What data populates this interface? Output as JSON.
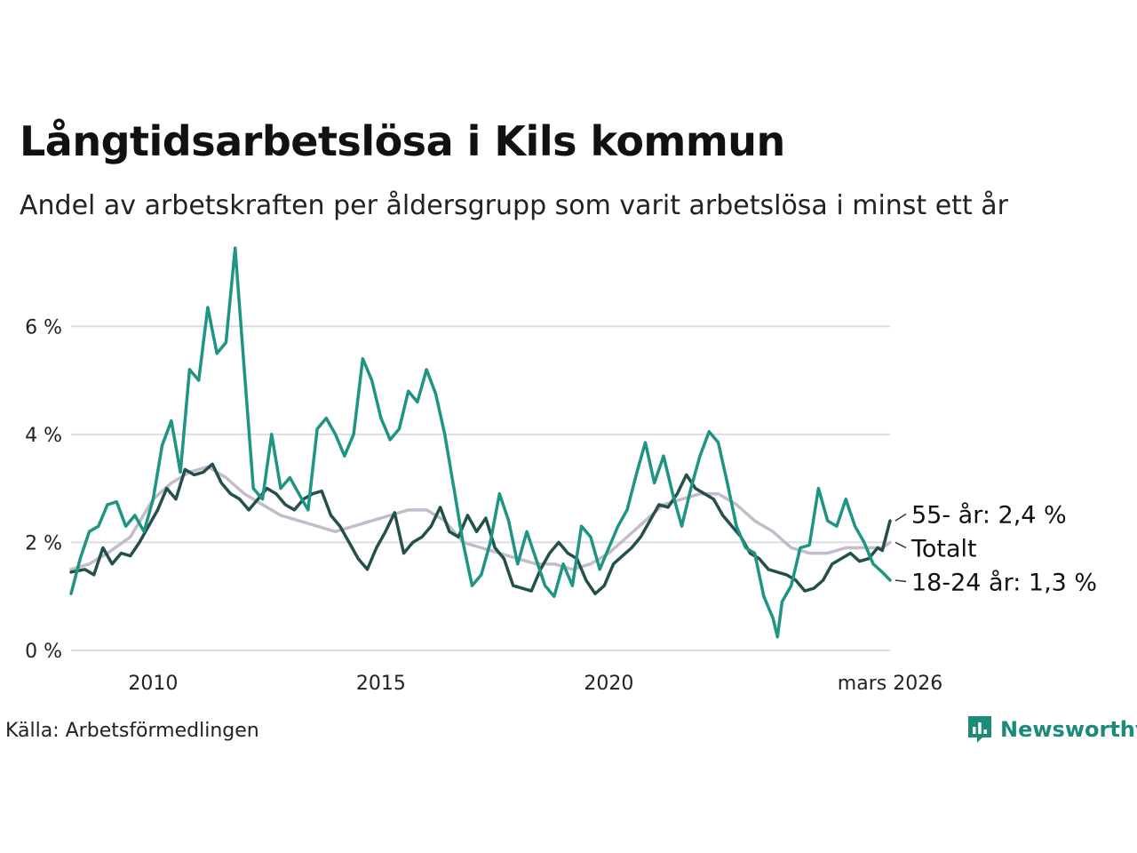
{
  "chart_data": {
    "type": "line",
    "title": "Långtidsarbetslösa i Kils kommun",
    "subtitle": "Andel av arbetskraften per åldersgrupp som varit arbetslösa i minst ett år",
    "xlabel": "",
    "ylabel": "",
    "x_range": [
      2008.2,
      2026.17
    ],
    "ylim": [
      0,
      7.6
    ],
    "y_ticks": [
      0,
      2,
      4,
      6
    ],
    "y_tick_labels": [
      "0 %",
      "2 %",
      "4 %",
      "6 %"
    ],
    "x_ticks": [
      2010,
      2015,
      2020,
      2026.17
    ],
    "x_tick_labels": [
      "2010",
      "2015",
      "2020",
      "mars 2026"
    ],
    "grid": true,
    "source": "Källa: Arbetsförmedlingen",
    "series": [
      {
        "name": "Totalt",
        "label": "Totalt",
        "color": "#c2bccb",
        "points": [
          [
            2008.2,
            1.5
          ],
          [
            2008.6,
            1.6
          ],
          [
            2009.0,
            1.8
          ],
          [
            2009.5,
            2.1
          ],
          [
            2010.0,
            2.8
          ],
          [
            2010.4,
            3.1
          ],
          [
            2010.8,
            3.3
          ],
          [
            2011.2,
            3.4
          ],
          [
            2011.6,
            3.2
          ],
          [
            2012.0,
            2.9
          ],
          [
            2012.4,
            2.7
          ],
          [
            2012.8,
            2.5
          ],
          [
            2013.2,
            2.4
          ],
          [
            2013.6,
            2.3
          ],
          [
            2014.0,
            2.2
          ],
          [
            2014.4,
            2.3
          ],
          [
            2014.8,
            2.4
          ],
          [
            2015.2,
            2.5
          ],
          [
            2015.6,
            2.6
          ],
          [
            2016.0,
            2.6
          ],
          [
            2016.4,
            2.4
          ],
          [
            2016.8,
            2.0
          ],
          [
            2017.2,
            1.9
          ],
          [
            2017.6,
            1.8
          ],
          [
            2018.0,
            1.7
          ],
          [
            2018.4,
            1.6
          ],
          [
            2018.8,
            1.6
          ],
          [
            2019.2,
            1.5
          ],
          [
            2019.6,
            1.6
          ],
          [
            2020.0,
            1.8
          ],
          [
            2020.4,
            2.1
          ],
          [
            2020.8,
            2.4
          ],
          [
            2021.2,
            2.7
          ],
          [
            2021.6,
            2.8
          ],
          [
            2022.0,
            2.9
          ],
          [
            2022.4,
            2.9
          ],
          [
            2022.8,
            2.7
          ],
          [
            2023.2,
            2.4
          ],
          [
            2023.6,
            2.2
          ],
          [
            2024.0,
            1.9
          ],
          [
            2024.4,
            1.8
          ],
          [
            2024.8,
            1.8
          ],
          [
            2025.2,
            1.9
          ],
          [
            2025.6,
            1.9
          ],
          [
            2026.0,
            1.9
          ],
          [
            2026.17,
            2.0
          ]
        ]
      },
      {
        "name": "55- år",
        "label": "55- år: 2,4 %",
        "color": "#23504a",
        "points": [
          [
            2008.2,
            1.45
          ],
          [
            2008.5,
            1.5
          ],
          [
            2008.7,
            1.4
          ],
          [
            2008.9,
            1.9
          ],
          [
            2009.1,
            1.6
          ],
          [
            2009.3,
            1.8
          ],
          [
            2009.5,
            1.75
          ],
          [
            2009.7,
            2.0
          ],
          [
            2009.9,
            2.3
          ],
          [
            2010.1,
            2.6
          ],
          [
            2010.3,
            3.0
          ],
          [
            2010.5,
            2.8
          ],
          [
            2010.7,
            3.35
          ],
          [
            2010.9,
            3.25
          ],
          [
            2011.1,
            3.3
          ],
          [
            2011.3,
            3.45
          ],
          [
            2011.5,
            3.1
          ],
          [
            2011.7,
            2.9
          ],
          [
            2011.9,
            2.8
          ],
          [
            2012.1,
            2.6
          ],
          [
            2012.3,
            2.8
          ],
          [
            2012.5,
            3.0
          ],
          [
            2012.7,
            2.9
          ],
          [
            2012.9,
            2.7
          ],
          [
            2013.1,
            2.6
          ],
          [
            2013.3,
            2.8
          ],
          [
            2013.5,
            2.9
          ],
          [
            2013.7,
            2.95
          ],
          [
            2013.9,
            2.5
          ],
          [
            2014.1,
            2.3
          ],
          [
            2014.3,
            2.0
          ],
          [
            2014.5,
            1.7
          ],
          [
            2014.7,
            1.5
          ],
          [
            2014.9,
            1.9
          ],
          [
            2015.1,
            2.2
          ],
          [
            2015.3,
            2.55
          ],
          [
            2015.5,
            1.8
          ],
          [
            2015.7,
            2.0
          ],
          [
            2015.9,
            2.1
          ],
          [
            2016.1,
            2.3
          ],
          [
            2016.3,
            2.65
          ],
          [
            2016.5,
            2.2
          ],
          [
            2016.7,
            2.1
          ],
          [
            2016.9,
            2.5
          ],
          [
            2017.1,
            2.2
          ],
          [
            2017.3,
            2.45
          ],
          [
            2017.5,
            1.9
          ],
          [
            2017.7,
            1.7
          ],
          [
            2017.9,
            1.2
          ],
          [
            2018.1,
            1.15
          ],
          [
            2018.3,
            1.1
          ],
          [
            2018.5,
            1.5
          ],
          [
            2018.7,
            1.8
          ],
          [
            2018.9,
            2.0
          ],
          [
            2019.1,
            1.8
          ],
          [
            2019.3,
            1.7
          ],
          [
            2019.5,
            1.3
          ],
          [
            2019.7,
            1.05
          ],
          [
            2019.9,
            1.2
          ],
          [
            2020.1,
            1.6
          ],
          [
            2020.3,
            1.75
          ],
          [
            2020.5,
            1.9
          ],
          [
            2020.7,
            2.1
          ],
          [
            2020.9,
            2.4
          ],
          [
            2021.1,
            2.7
          ],
          [
            2021.3,
            2.65
          ],
          [
            2021.5,
            2.9
          ],
          [
            2021.7,
            3.25
          ],
          [
            2021.9,
            3.0
          ],
          [
            2022.1,
            2.9
          ],
          [
            2022.3,
            2.8
          ],
          [
            2022.5,
            2.5
          ],
          [
            2022.7,
            2.3
          ],
          [
            2022.9,
            2.1
          ],
          [
            2023.1,
            1.8
          ],
          [
            2023.3,
            1.7
          ],
          [
            2023.5,
            1.5
          ],
          [
            2023.7,
            1.45
          ],
          [
            2023.9,
            1.4
          ],
          [
            2024.1,
            1.3
          ],
          [
            2024.3,
            1.1
          ],
          [
            2024.5,
            1.15
          ],
          [
            2024.7,
            1.3
          ],
          [
            2024.9,
            1.6
          ],
          [
            2025.1,
            1.7
          ],
          [
            2025.3,
            1.8
          ],
          [
            2025.5,
            1.65
          ],
          [
            2025.7,
            1.7
          ],
          [
            2025.9,
            1.9
          ],
          [
            2026.0,
            1.85
          ],
          [
            2026.17,
            2.4
          ]
        ]
      },
      {
        "name": "18-24 år",
        "label": "18-24 år: 1,3 %",
        "color": "#1d9582",
        "points": [
          [
            2008.2,
            1.05
          ],
          [
            2008.4,
            1.7
          ],
          [
            2008.6,
            2.2
          ],
          [
            2008.8,
            2.3
          ],
          [
            2009.0,
            2.7
          ],
          [
            2009.2,
            2.75
          ],
          [
            2009.4,
            2.3
          ],
          [
            2009.6,
            2.5
          ],
          [
            2009.8,
            2.2
          ],
          [
            2010.0,
            2.8
          ],
          [
            2010.2,
            3.8
          ],
          [
            2010.4,
            4.25
          ],
          [
            2010.6,
            3.3
          ],
          [
            2010.8,
            5.2
          ],
          [
            2011.0,
            5.0
          ],
          [
            2011.2,
            6.35
          ],
          [
            2011.4,
            5.5
          ],
          [
            2011.6,
            5.7
          ],
          [
            2011.8,
            7.45
          ],
          [
            2012.0,
            5.2
          ],
          [
            2012.2,
            3.0
          ],
          [
            2012.4,
            2.8
          ],
          [
            2012.6,
            4.0
          ],
          [
            2012.8,
            3.0
          ],
          [
            2013.0,
            3.2
          ],
          [
            2013.2,
            2.9
          ],
          [
            2013.4,
            2.6
          ],
          [
            2013.6,
            4.1
          ],
          [
            2013.8,
            4.3
          ],
          [
            2014.0,
            4.0
          ],
          [
            2014.2,
            3.6
          ],
          [
            2014.4,
            4.0
          ],
          [
            2014.6,
            5.4
          ],
          [
            2014.8,
            5.0
          ],
          [
            2015.0,
            4.3
          ],
          [
            2015.2,
            3.9
          ],
          [
            2015.4,
            4.1
          ],
          [
            2015.6,
            4.8
          ],
          [
            2015.8,
            4.6
          ],
          [
            2016.0,
            5.2
          ],
          [
            2016.2,
            4.75
          ],
          [
            2016.4,
            4.0
          ],
          [
            2016.6,
            3.0
          ],
          [
            2016.8,
            2.0
          ],
          [
            2017.0,
            1.2
          ],
          [
            2017.2,
            1.4
          ],
          [
            2017.4,
            2.0
          ],
          [
            2017.6,
            2.9
          ],
          [
            2017.8,
            2.4
          ],
          [
            2018.0,
            1.6
          ],
          [
            2018.2,
            2.2
          ],
          [
            2018.4,
            1.7
          ],
          [
            2018.6,
            1.2
          ],
          [
            2018.8,
            1.0
          ],
          [
            2019.0,
            1.6
          ],
          [
            2019.2,
            1.2
          ],
          [
            2019.4,
            2.3
          ],
          [
            2019.6,
            2.1
          ],
          [
            2019.8,
            1.5
          ],
          [
            2020.0,
            1.9
          ],
          [
            2020.2,
            2.3
          ],
          [
            2020.4,
            2.6
          ],
          [
            2020.6,
            3.25
          ],
          [
            2020.8,
            3.85
          ],
          [
            2021.0,
            3.1
          ],
          [
            2021.2,
            3.6
          ],
          [
            2021.4,
            2.9
          ],
          [
            2021.6,
            2.3
          ],
          [
            2021.8,
            3.0
          ],
          [
            2022.0,
            3.6
          ],
          [
            2022.2,
            4.05
          ],
          [
            2022.4,
            3.85
          ],
          [
            2022.6,
            3.1
          ],
          [
            2022.8,
            2.3
          ],
          [
            2023.0,
            1.9
          ],
          [
            2023.2,
            1.8
          ],
          [
            2023.4,
            1.0
          ],
          [
            2023.6,
            0.6
          ],
          [
            2023.7,
            0.25
          ],
          [
            2023.8,
            0.9
          ],
          [
            2024.0,
            1.2
          ],
          [
            2024.2,
            1.9
          ],
          [
            2024.4,
            1.95
          ],
          [
            2024.6,
            3.0
          ],
          [
            2024.8,
            2.4
          ],
          [
            2025.0,
            2.3
          ],
          [
            2025.2,
            2.8
          ],
          [
            2025.4,
            2.3
          ],
          [
            2025.6,
            2.0
          ],
          [
            2025.8,
            1.6
          ],
          [
            2026.0,
            1.45
          ],
          [
            2026.17,
            1.3
          ]
        ]
      }
    ]
  },
  "logo": {
    "text": "Newsworthy",
    "icon": "newsworthy-logo-icon",
    "color": "#1e8a7a"
  }
}
